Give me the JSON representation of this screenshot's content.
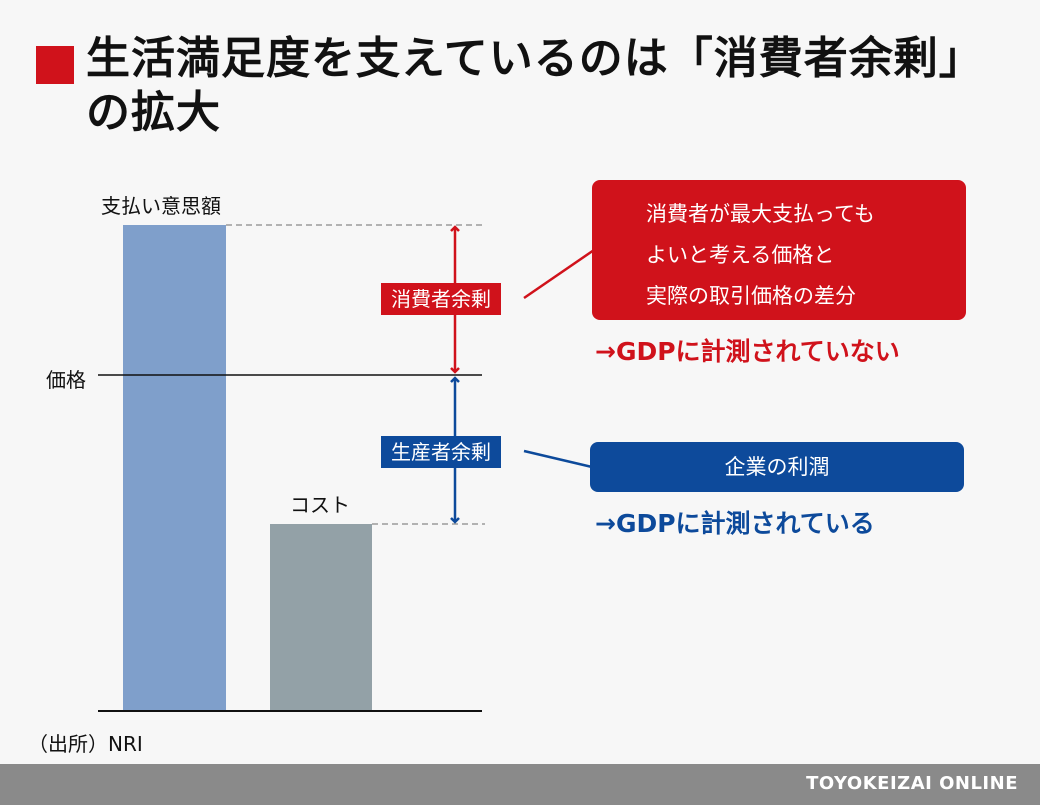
{
  "title": "生活満足度を支えているのは「消費者余剰」の拡大",
  "labels": {
    "willingness_to_pay": "支払い意思額",
    "price": "価格",
    "cost": "コスト"
  },
  "consumer_surplus": {
    "tag": "消費者余剰",
    "description_lines": [
      "消費者が最大支払っても",
      "よいと考える価格と",
      "実際の取引価格の差分"
    ],
    "gdp_note": "→GDPに計測されていない"
  },
  "producer_surplus": {
    "tag": "生産者余剰",
    "description": "企業の利潤",
    "gdp_note": "→GDPに計測されている"
  },
  "source": "（出所）NRI",
  "footer": "TOYOKEIZAI ONLINE",
  "colors": {
    "red": "#d0121b",
    "blue": "#0d4a9b",
    "bar_willingness": "#7f9fcb",
    "bar_cost": "#93a1a7"
  }
}
